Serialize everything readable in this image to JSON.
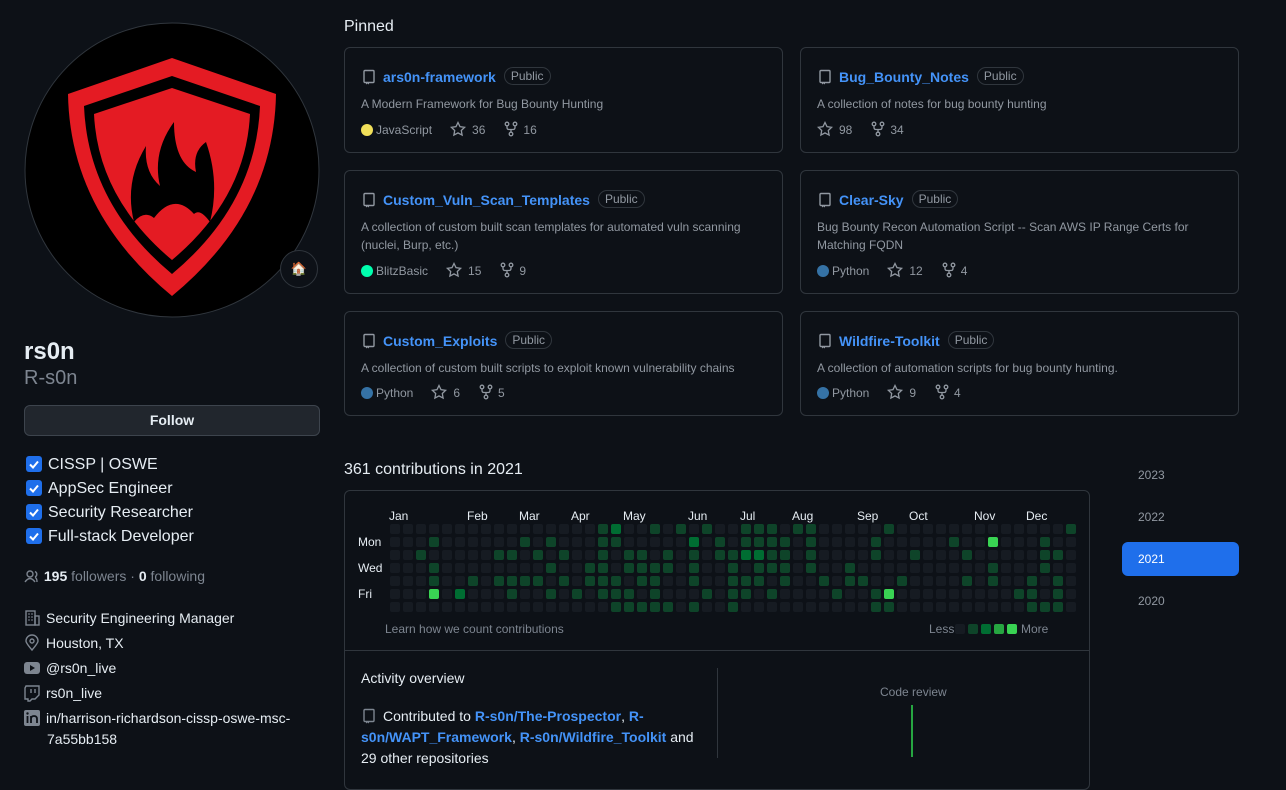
{
  "profile": {
    "name": "rs0n",
    "login": "R-s0n",
    "avatar_badge": "🏠",
    "follow": "Follow",
    "badges": [
      "CISSP | OSWE",
      "AppSec Engineer",
      "Security Researcher",
      "Full-stack Developer"
    ],
    "followers_count": "195",
    "followers_label": "followers",
    "sep": "·",
    "following_count": "0",
    "following_label": "following",
    "details": [
      "Security Engineering Manager",
      "Houston, TX",
      "@rs0n_live",
      "rs0n_live",
      "in/harrison-richardson-cissp-oswe-msc-7a55bb158"
    ]
  },
  "pinned": {
    "title": "Pinned",
    "items": [
      {
        "name": "ars0n-framework",
        "visibility": "Public",
        "description": "A Modern Framework for Bug Bounty Hunting",
        "language": "JavaScript",
        "language_color": "#f1e05a",
        "stars": "36",
        "forks": "16"
      },
      {
        "name": "Bug_Bounty_Notes",
        "visibility": "Public",
        "description": "A collection of notes for bug bounty hunting",
        "stars": "98",
        "forks": "34"
      },
      {
        "name": "Custom_Vuln_Scan_Templates",
        "visibility": "Public",
        "description": "A collection of custom built scan templates for automated vuln scanning (nuclei, Burp, etc.)",
        "language": "BlitzBasic",
        "language_color": "#00ffae",
        "stars": "15",
        "forks": "9"
      },
      {
        "name": "Clear-Sky",
        "visibility": "Public",
        "description": "Bug Bounty Recon Automation Script -- Scan AWS IP Range Certs for Matching FQDN",
        "language": "Python",
        "language_color": "#3572A5",
        "stars": "12",
        "forks": "4"
      },
      {
        "name": "Custom_Exploits",
        "visibility": "Public",
        "description": "A collection of custom built scripts to exploit known vulnerability chains",
        "language": "Python",
        "language_color": "#3572A5",
        "stars": "6",
        "forks": "5"
      },
      {
        "name": "Wildfire-Toolkit",
        "visibility": "Public",
        "description": "A collection of automation scripts for bug bounty hunting.",
        "language": "Python",
        "language_color": "#3572A5",
        "stars": "9",
        "forks": "4"
      }
    ]
  },
  "contributions": {
    "title": "361 contributions in 2021",
    "months": [
      "Jan",
      "Feb",
      "Mar",
      "Apr",
      "May",
      "Jun",
      "Jul",
      "Aug",
      "Sep",
      "Oct",
      "Nov",
      "Dec"
    ],
    "days": [
      "Mon",
      "Wed",
      "Fri"
    ],
    "levels": [
      [
        0,
        0,
        0,
        0,
        0,
        0,
        0,
        0,
        0,
        0,
        0,
        0,
        0,
        0,
        0,
        0,
        1,
        2,
        0,
        0,
        1,
        0,
        1,
        0,
        1,
        0,
        0,
        1,
        1,
        1,
        0,
        1,
        1,
        0,
        0,
        0,
        0,
        0,
        1,
        0,
        0,
        0,
        0,
        0,
        0,
        0,
        0,
        0,
        0,
        0,
        0,
        0,
        1
      ],
      [
        0,
        0,
        0,
        1,
        0,
        0,
        0,
        0,
        0,
        0,
        1,
        0,
        1,
        0,
        0,
        0,
        1,
        1,
        0,
        0,
        0,
        0,
        0,
        2,
        0,
        1,
        0,
        1,
        1,
        1,
        1,
        0,
        1,
        0,
        0,
        0,
        0,
        1,
        0,
        0,
        0,
        0,
        0,
        1,
        0,
        0,
        4,
        0,
        0,
        0,
        1,
        0,
        0
      ],
      [
        0,
        0,
        1,
        0,
        0,
        0,
        0,
        0,
        1,
        1,
        0,
        1,
        0,
        1,
        0,
        0,
        1,
        0,
        1,
        1,
        0,
        1,
        0,
        1,
        0,
        1,
        1,
        2,
        2,
        1,
        1,
        0,
        1,
        0,
        0,
        0,
        0,
        1,
        0,
        0,
        1,
        0,
        0,
        0,
        1,
        0,
        0,
        0,
        0,
        0,
        1,
        1,
        0
      ],
      [
        0,
        0,
        0,
        1,
        0,
        0,
        0,
        0,
        0,
        0,
        0,
        0,
        1,
        0,
        0,
        1,
        1,
        0,
        1,
        1,
        1,
        1,
        0,
        1,
        0,
        0,
        1,
        0,
        1,
        1,
        1,
        0,
        1,
        0,
        0,
        1,
        0,
        0,
        0,
        0,
        0,
        0,
        0,
        0,
        0,
        0,
        1,
        0,
        0,
        0,
        1,
        0,
        0
      ],
      [
        0,
        0,
        0,
        1,
        0,
        0,
        1,
        0,
        1,
        1,
        1,
        1,
        0,
        1,
        0,
        1,
        1,
        1,
        0,
        1,
        1,
        0,
        0,
        1,
        0,
        0,
        1,
        1,
        1,
        0,
        1,
        0,
        0,
        1,
        0,
        1,
        1,
        0,
        0,
        1,
        0,
        0,
        0,
        0,
        1,
        0,
        1,
        0,
        0,
        1,
        0,
        1,
        0
      ],
      [
        0,
        0,
        0,
        4,
        0,
        2,
        0,
        0,
        0,
        1,
        0,
        0,
        1,
        0,
        1,
        0,
        1,
        1,
        1,
        0,
        1,
        0,
        0,
        0,
        1,
        0,
        1,
        1,
        0,
        1,
        0,
        0,
        0,
        0,
        1,
        0,
        0,
        1,
        4,
        0,
        0,
        0,
        0,
        0,
        0,
        0,
        0,
        0,
        1,
        1,
        0,
        1,
        0
      ],
      [
        0,
        0,
        0,
        0,
        0,
        0,
        0,
        0,
        0,
        0,
        0,
        0,
        0,
        0,
        0,
        0,
        0,
        1,
        1,
        1,
        1,
        1,
        0,
        1,
        0,
        0,
        1,
        0,
        0,
        0,
        0,
        0,
        0,
        0,
        0,
        0,
        0,
        1,
        1,
        0,
        0,
        0,
        0,
        0,
        0,
        0,
        0,
        0,
        0,
        1,
        1,
        1,
        0
      ]
    ],
    "level_colors": [
      "#161b22",
      "#0e4429",
      "#006d32",
      "#26a641",
      "#39d353"
    ],
    "learn": "Learn how we count contributions",
    "less": "Less",
    "more": "More",
    "years": [
      "2023",
      "2022",
      "2021",
      "2020"
    ],
    "selected_year": "2021"
  },
  "activity": {
    "title": "Activity overview",
    "prefix": "Contributed to",
    "repos": [
      "R-s0n/The-Prospector",
      "R-s0n/WAPT_Framework",
      "R-s0n/Wildfire_Toolkit"
    ],
    "suffix": "and 29 other repositories",
    "code_review": "Code review"
  }
}
